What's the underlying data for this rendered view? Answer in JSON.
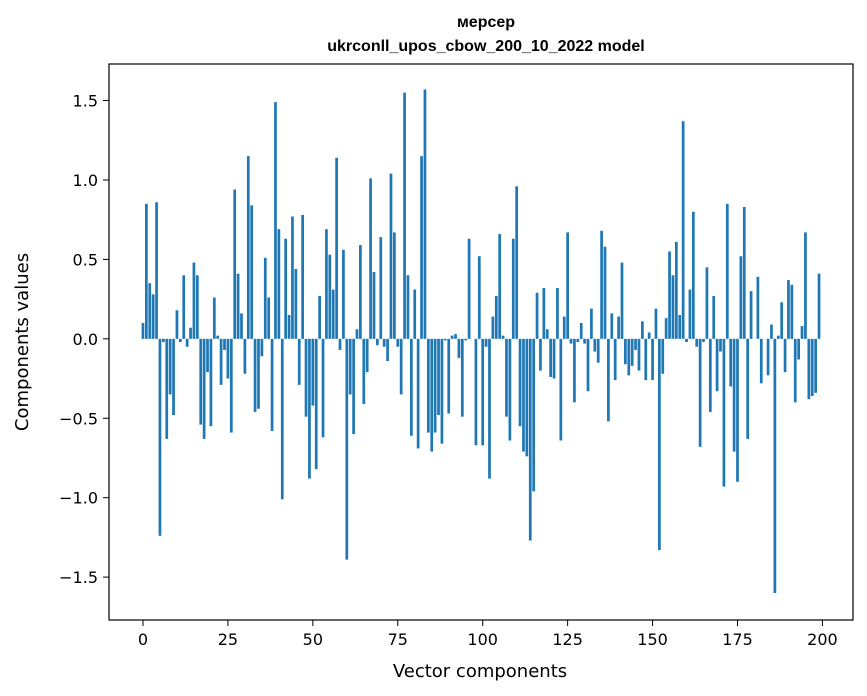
{
  "chart_data": {
    "type": "bar",
    "title": "мерсер",
    "subtitle": "ukrconll_upos_cbow_200_10_2022 model",
    "xlabel": "Vector components",
    "ylabel": "Components values",
    "xlim": [
      -10,
      209
    ],
    "ylim": [
      -1.77,
      1.73
    ],
    "xticks": [
      0,
      25,
      50,
      75,
      100,
      125,
      150,
      175,
      200
    ],
    "yticks": [
      -1.5,
      -1.0,
      -0.5,
      0.0,
      0.5,
      1.0,
      1.5
    ],
    "ytick_labels": [
      "−1.5",
      "−1.0",
      "−0.5",
      "0.0",
      "0.5",
      "1.0",
      "1.5"
    ],
    "bar_color": "#1f77b4",
    "grid": false,
    "x": [
      0,
      1,
      2,
      3,
      4,
      5,
      6,
      7,
      8,
      9,
      10,
      11,
      12,
      13,
      14,
      15,
      16,
      17,
      18,
      19,
      20,
      21,
      22,
      23,
      24,
      25,
      26,
      27,
      28,
      29,
      30,
      31,
      32,
      33,
      34,
      35,
      36,
      37,
      38,
      39,
      40,
      41,
      42,
      43,
      44,
      45,
      46,
      47,
      48,
      49,
      50,
      51,
      52,
      53,
      54,
      55,
      56,
      57,
      58,
      59,
      60,
      61,
      62,
      63,
      64,
      65,
      66,
      67,
      68,
      69,
      70,
      71,
      72,
      73,
      74,
      75,
      76,
      77,
      78,
      79,
      80,
      81,
      82,
      83,
      84,
      85,
      86,
      87,
      88,
      89,
      90,
      91,
      92,
      93,
      94,
      95,
      96,
      97,
      98,
      99,
      100,
      101,
      102,
      103,
      104,
      105,
      106,
      107,
      108,
      109,
      110,
      111,
      112,
      113,
      114,
      115,
      116,
      117,
      118,
      119,
      120,
      121,
      122,
      123,
      124,
      125,
      126,
      127,
      128,
      129,
      130,
      131,
      132,
      133,
      134,
      135,
      136,
      137,
      138,
      139,
      140,
      141,
      142,
      143,
      144,
      145,
      146,
      147,
      148,
      149,
      150,
      151,
      152,
      153,
      154,
      155,
      156,
      157,
      158,
      159,
      160,
      161,
      162,
      163,
      164,
      165,
      166,
      167,
      168,
      169,
      170,
      171,
      172,
      173,
      174,
      175,
      176,
      177,
      178,
      179,
      180,
      181,
      182,
      183,
      184,
      185,
      186,
      187,
      188,
      189,
      190,
      191,
      192,
      193,
      194,
      195,
      196,
      197,
      198,
      199
    ],
    "values": [
      0.1,
      0.85,
      0.35,
      0.28,
      0.86,
      -1.24,
      -0.02,
      -0.63,
      -0.35,
      -0.48,
      0.18,
      -0.02,
      0.4,
      -0.05,
      0.07,
      0.48,
      0.4,
      -0.54,
      -0.63,
      -0.21,
      -0.55,
      0.26,
      0.02,
      -0.29,
      -0.07,
      -0.25,
      -0.59,
      0.94,
      0.41,
      0.16,
      -0.22,
      1.15,
      0.84,
      -0.46,
      -0.44,
      -0.11,
      0.51,
      0.26,
      -0.58,
      1.49,
      0.69,
      -1.01,
      0.63,
      0.15,
      0.77,
      0.44,
      -0.29,
      0.78,
      -0.49,
      -0.88,
      -0.42,
      -0.82,
      0.27,
      -0.62,
      0.69,
      0.53,
      0.31,
      1.14,
      -0.07,
      0.56,
      -1.39,
      -0.35,
      -0.6,
      0.06,
      0.59,
      -0.41,
      -0.21,
      1.01,
      0.42,
      -0.04,
      0.64,
      -0.05,
      -0.14,
      1.04,
      0.67,
      -0.05,
      -0.35,
      1.55,
      0.4,
      -0.61,
      0.31,
      -0.69,
      1.15,
      1.57,
      -0.59,
      -0.71,
      -0.59,
      -0.48,
      -0.66,
      -0.01,
      -0.47,
      0.02,
      0.03,
      -0.12,
      -0.49,
      -0.01,
      0.63,
      0.0,
      -0.67,
      0.52,
      -0.67,
      -0.05,
      -0.88,
      0.14,
      0.27,
      0.66,
      0.02,
      -0.49,
      -0.64,
      0.63,
      0.96,
      -0.55,
      -0.71,
      -0.74,
      -1.27,
      -0.96,
      0.29,
      -0.2,
      0.32,
      0.06,
      -0.24,
      -0.25,
      0.32,
      -0.64,
      0.14,
      0.67,
      -0.03,
      -0.4,
      -0.02,
      0.1,
      -0.03,
      -0.33,
      0.19,
      -0.08,
      -0.15,
      0.68,
      0.58,
      -0.52,
      0.16,
      -0.26,
      0.14,
      0.48,
      -0.16,
      -0.23,
      -0.17,
      -0.07,
      -0.2,
      0.11,
      -0.26,
      0.04,
      -0.26,
      0.19,
      -1.33,
      -0.22,
      0.13,
      0.55,
      0.4,
      0.61,
      0.15,
      1.37,
      -0.02,
      0.31,
      0.8,
      -0.05,
      -0.68,
      -0.02,
      0.45,
      -0.46,
      0.27,
      -0.33,
      -0.08,
      -0.93,
      0.85,
      -0.3,
      -0.71,
      -0.9,
      0.52,
      0.83,
      -0.63,
      0.3,
      0.0,
      0.39,
      -0.28,
      0.0,
      -0.23,
      0.09,
      -1.6,
      0.02,
      0.23,
      -0.21,
      0.37,
      0.34,
      -0.4,
      -0.13,
      0.08,
      0.67,
      -0.38,
      -0.36,
      -0.34,
      0.41
    ]
  }
}
